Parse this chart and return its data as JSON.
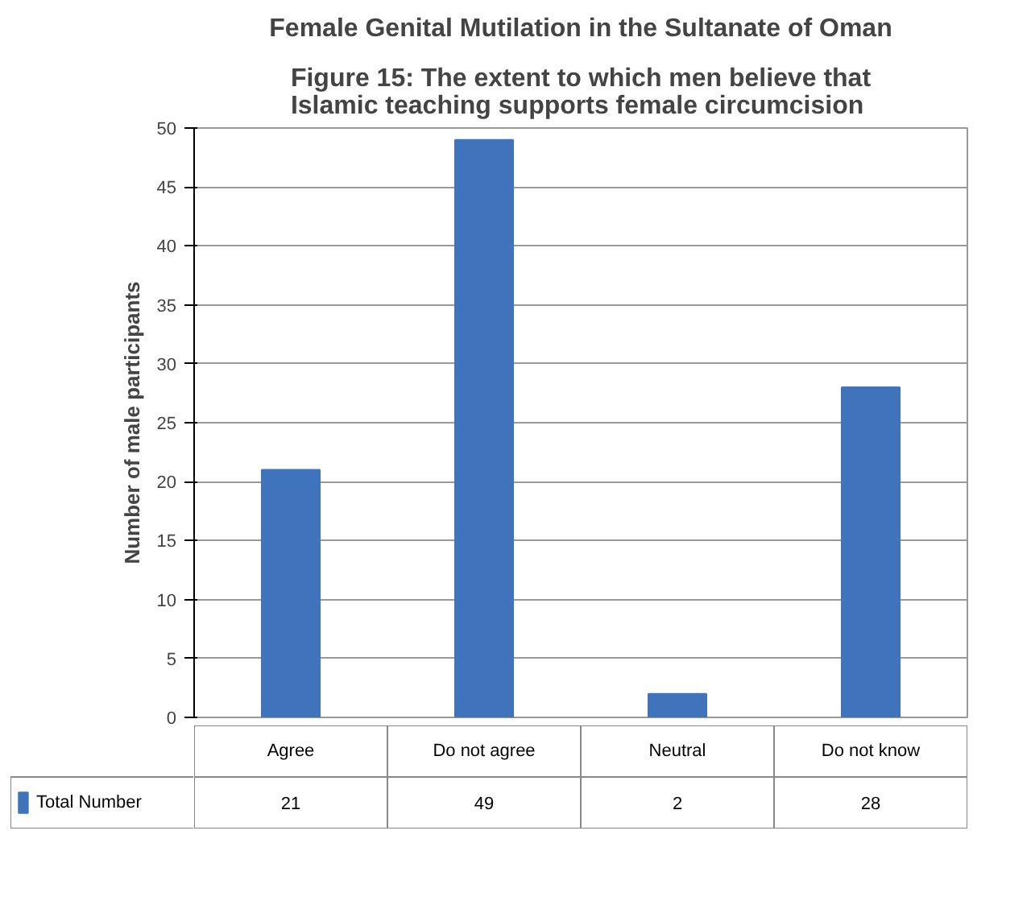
{
  "chart_data": {
    "type": "bar",
    "title": "Female Genital Mutilation in the Sultanate of Oman",
    "subtitle": "Figure 15: The extent to which men believe that Islamic teaching supports female circumcision",
    "ylabel": "Number of male participants",
    "categories": [
      "Agree",
      "Do not agree",
      "Neutral",
      "Do not know"
    ],
    "series": [
      {
        "name": "Total Number",
        "color": "#3f74bc",
        "values": [
          21,
          49,
          2,
          28
        ]
      }
    ],
    "ylim": [
      0,
      50
    ],
    "yticks": [
      0,
      5,
      10,
      15,
      20,
      25,
      30,
      35,
      40,
      45,
      50
    ],
    "grid": "y",
    "legend": "bottom",
    "data_labels": true
  }
}
